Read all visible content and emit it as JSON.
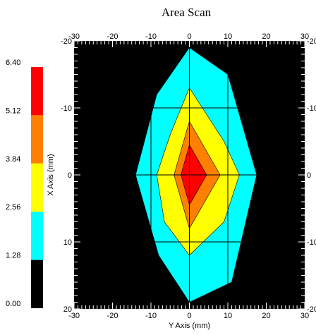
{
  "chart_data": {
    "type": "heatmap",
    "title": "Area Scan",
    "xlabel": "Y Axis (mm)",
    "ylabel": "X Axis (mm)",
    "xlim": [
      -30,
      30
    ],
    "ylim": [
      -20,
      20
    ],
    "y_inverted": true,
    "x_ticks": [
      -30,
      -20,
      -10,
      0,
      10,
      20,
      30
    ],
    "y_ticks_left": [
      -20,
      -10,
      0,
      10,
      20
    ],
    "y_ticks_right": [
      -20,
      -10,
      0,
      10,
      20
    ],
    "y_tick_labels_right": [
      "-20",
      "-10",
      "0",
      "-10",
      "-20"
    ],
    "grid_x": [
      -10,
      0,
      10
    ],
    "grid_y": [
      -10,
      0,
      10
    ],
    "colorbar": {
      "tick_labels": [
        "6.40",
        "5.12",
        "3.84",
        "2.56",
        "1.28",
        "0.00"
      ],
      "bins": [
        {
          "min": 5.12,
          "max": 6.4,
          "color": "#ff0000"
        },
        {
          "min": 3.84,
          "max": 5.12,
          "color": "#ff8000"
        },
        {
          "min": 2.56,
          "max": 3.84,
          "color": "#ffff00"
        },
        {
          "min": 1.28,
          "max": 2.56,
          "color": "#00ffff"
        },
        {
          "min": 0.0,
          "max": 1.28,
          "color": "#000000"
        }
      ]
    },
    "background_color": "#000000",
    "contours": [
      {
        "level": "1.28-2.56",
        "color": "#00ffff",
        "points": [
          [
            0,
            -19
          ],
          [
            10,
            -15
          ],
          [
            17.5,
            0
          ],
          [
            11,
            16
          ],
          [
            0,
            19
          ],
          [
            -8,
            12
          ],
          [
            -14,
            0
          ],
          [
            -8.5,
            -12
          ]
        ]
      },
      {
        "level": "2.56-3.84",
        "color": "#ffff00",
        "points": [
          [
            0,
            -13
          ],
          [
            9,
            -5
          ],
          [
            13,
            0
          ],
          [
            9,
            7
          ],
          [
            0,
            12
          ],
          [
            -6.5,
            7
          ],
          [
            -8.5,
            0
          ],
          [
            -5,
            -6
          ]
        ]
      },
      {
        "level": "3.84-5.12",
        "color": "#ff8000",
        "points": [
          [
            0,
            -8
          ],
          [
            8,
            0
          ],
          [
            0,
            8
          ],
          [
            -4,
            0
          ]
        ]
      },
      {
        "level": "5.12-6.40",
        "color": "#ff0000",
        "points": [
          [
            0,
            -4.5
          ],
          [
            4.5,
            0
          ],
          [
            0,
            4.5
          ],
          [
            -2.2,
            0
          ]
        ]
      }
    ]
  }
}
